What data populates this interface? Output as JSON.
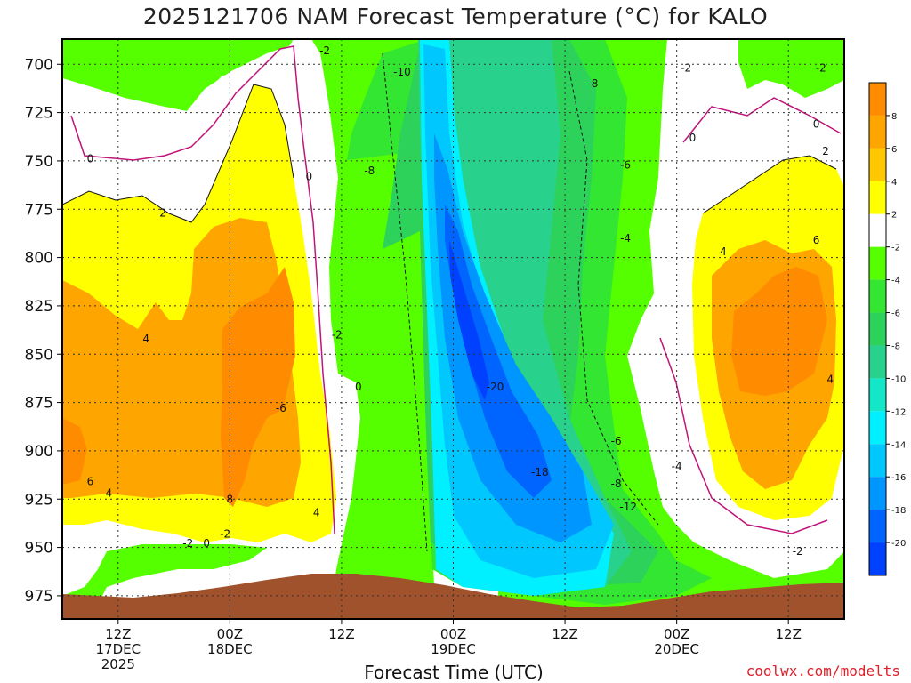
{
  "title": "2025121706 NAM Forecast Temperature (°C) for KALO",
  "credit": "coolwx.com/modelts",
  "chart_data": {
    "type": "heatmap",
    "title": "2025121706 NAM Forecast Temperature (°C) for KALO",
    "xlabel": "Forecast Time (UTC)",
    "ylabel": "",
    "x_range_hours": [
      0,
      84
    ],
    "y_ticks": [
      700,
      725,
      750,
      775,
      800,
      825,
      850,
      875,
      900,
      925,
      950,
      975
    ],
    "y_range_mb": [
      687,
      987
    ],
    "x_ticks": [
      {
        "hour": 6,
        "lines": [
          "12Z",
          "17DEC",
          "2025"
        ]
      },
      {
        "hour": 18,
        "lines": [
          "00Z",
          "18DEC"
        ]
      },
      {
        "hour": 30,
        "lines": [
          "12Z"
        ]
      },
      {
        "hour": 42,
        "lines": [
          "00Z",
          "19DEC"
        ]
      },
      {
        "hour": 54,
        "lines": [
          "12Z"
        ]
      },
      {
        "hour": 66,
        "lines": [
          "00Z",
          "20DEC"
        ]
      },
      {
        "hour": 78,
        "lines": [
          "12Z"
        ]
      }
    ],
    "colorbar": {
      "levels": [
        8,
        6,
        4,
        2,
        -2,
        -4,
        -6,
        -8,
        -10,
        -12,
        -14,
        -16,
        -18,
        -20
      ],
      "colors": [
        "#ff8c00",
        "#ffa500",
        "#ffc800",
        "#ffff00",
        "#ffffff",
        "#55ff00",
        "#32e632",
        "#2dd25a",
        "#28d28c",
        "#14e6c8",
        "#00f0ff",
        "#00c8ff",
        "#0096ff",
        "#0064ff",
        "#0040ff"
      ]
    },
    "grid": true,
    "contour_labels": [
      {
        "value": "-2",
        "hour": 28.2,
        "mb": 693
      },
      {
        "value": "-10",
        "hour": 36.5,
        "mb": 704
      },
      {
        "value": "-8",
        "hour": 57,
        "mb": 710
      },
      {
        "value": "-2",
        "hour": 67,
        "mb": 702
      },
      {
        "value": "-2",
        "hour": 81.5,
        "mb": 702
      },
      {
        "value": "0",
        "hour": 81,
        "mb": 731
      },
      {
        "value": "0",
        "hour": 67.7,
        "mb": 738
      },
      {
        "value": "2",
        "hour": 82,
        "mb": 745
      },
      {
        "value": "0",
        "hour": 3,
        "mb": 749
      },
      {
        "value": "0",
        "hour": 26.5,
        "mb": 758
      },
      {
        "value": "-8",
        "hour": 33,
        "mb": 755
      },
      {
        "value": "-6",
        "hour": 60.5,
        "mb": 752
      },
      {
        "value": "2",
        "hour": 10.8,
        "mb": 777
      },
      {
        "value": "-4",
        "hour": 60.5,
        "mb": 790
      },
      {
        "value": "6",
        "hour": 81,
        "mb": 791
      },
      {
        "value": "4",
        "hour": 71,
        "mb": 797
      },
      {
        "value": "4",
        "hour": 9,
        "mb": 842
      },
      {
        "value": "-2",
        "hour": 29.5,
        "mb": 840
      },
      {
        "value": "-20",
        "hour": 46.5,
        "mb": 867
      },
      {
        "value": "0",
        "hour": 31.8,
        "mb": 867
      },
      {
        "value": "4",
        "hour": 82.5,
        "mb": 863
      },
      {
        "value": "-6",
        "hour": 23.5,
        "mb": 878
      },
      {
        "value": "-6",
        "hour": 59.5,
        "mb": 895
      },
      {
        "value": "-18",
        "hour": 51.3,
        "mb": 911
      },
      {
        "value": "-4",
        "hour": 66,
        "mb": 908
      },
      {
        "value": "-8",
        "hour": 59.5,
        "mb": 917
      },
      {
        "value": "6",
        "hour": 3,
        "mb": 916
      },
      {
        "value": "4",
        "hour": 5,
        "mb": 922
      },
      {
        "value": "8",
        "hour": 18,
        "mb": 925
      },
      {
        "value": "-12",
        "hour": 60.8,
        "mb": 929
      },
      {
        "value": "4",
        "hour": 27.3,
        "mb": 932
      },
      {
        "value": "-2",
        "hour": 17.5,
        "mb": 943
      },
      {
        "value": "-2",
        "hour": 13.5,
        "mb": 948
      },
      {
        "value": "0",
        "hour": 15.5,
        "mb": 948
      },
      {
        "value": "-2",
        "hour": 79,
        "mb": 952
      }
    ]
  }
}
